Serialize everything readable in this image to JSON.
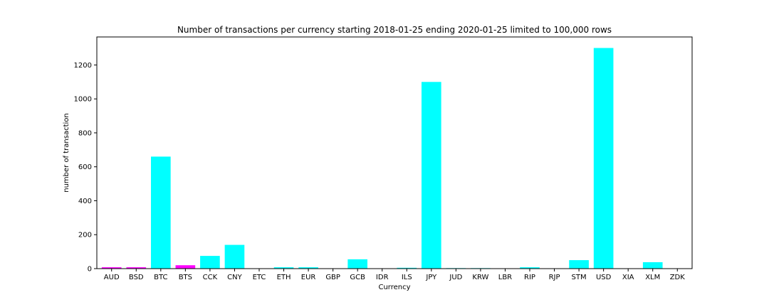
{
  "chart_data": {
    "type": "bar",
    "title": "Number of transactions per currency starting 2018-01-25 ending 2020-01-25 limited to 100,000 rows",
    "xlabel": "Currency",
    "ylabel": "number of transaction",
    "categories": [
      "AUD",
      "BSD",
      "BTC",
      "BTS",
      "CCK",
      "CNY",
      "ETC",
      "ETH",
      "EUR",
      "GBP",
      "GCB",
      "IDR",
      "ILS",
      "JPY",
      "JUD",
      "KRW",
      "LBR",
      "RIP",
      "RJP",
      "STM",
      "USD",
      "XIA",
      "XLM",
      "ZDK"
    ],
    "values": [
      8,
      8,
      660,
      20,
      75,
      140,
      0,
      8,
      8,
      0,
      55,
      0,
      5,
      1100,
      3,
      3,
      0,
      8,
      0,
      50,
      1300,
      0,
      38,
      0
    ],
    "bar_colors": [
      "#ff00ff",
      "#ff00ff",
      "#00ffff",
      "#ff00ff",
      "#00ffff",
      "#00ffff",
      "#00ffff",
      "#00ffff",
      "#00ffff",
      "#00ffff",
      "#00ffff",
      "#00ffff",
      "#00ffff",
      "#00ffff",
      "#00ffff",
      "#00ffff",
      "#00ffff",
      "#00ffff",
      "#00ffff",
      "#00ffff",
      "#00ffff",
      "#00ffff",
      "#00ffff",
      "#00ffff"
    ],
    "ylim": [
      0,
      1365
    ],
    "yticks": [
      0,
      200,
      400,
      600,
      800,
      1000,
      1200
    ],
    "grid": false,
    "legend": "none"
  }
}
